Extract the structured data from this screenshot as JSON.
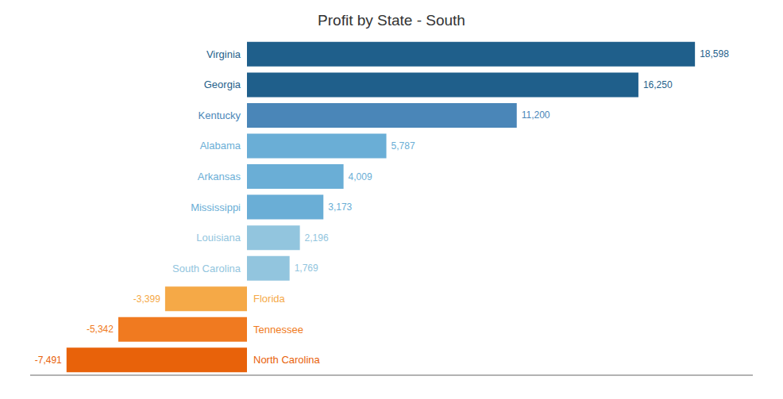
{
  "chart_data": {
    "type": "bar",
    "orientation": "horizontal",
    "title": "Profit by State - South",
    "categories": [
      "Virginia",
      "Georgia",
      "Kentucky",
      "Alabama",
      "Arkansas",
      "Mississippi",
      "Louisiana",
      "South Carolina",
      "Florida",
      "Tennessee",
      "North Carolina"
    ],
    "values": [
      18598,
      16250,
      11200,
      5787,
      4009,
      3173,
      2196,
      1769,
      -3399,
      -5342,
      -7491
    ],
    "value_labels": [
      "18,598",
      "16,250",
      "11,200",
      "5,787",
      "4,009",
      "3,173",
      "2,196",
      "1,769",
      "-3,399",
      "-5,342",
      "-7,491"
    ],
    "colors": [
      "#1f5f8b",
      "#1f5f8b",
      "#4a86b8",
      "#6aaed6",
      "#6aaed6",
      "#6aaed6",
      "#92c5de",
      "#92c5de",
      "#f5a947",
      "#f07a20",
      "#e8620a"
    ],
    "xlim": [
      -9000,
      21000
    ],
    "xticks": [],
    "data_labels": true,
    "tick_labels": false,
    "grid": false
  }
}
